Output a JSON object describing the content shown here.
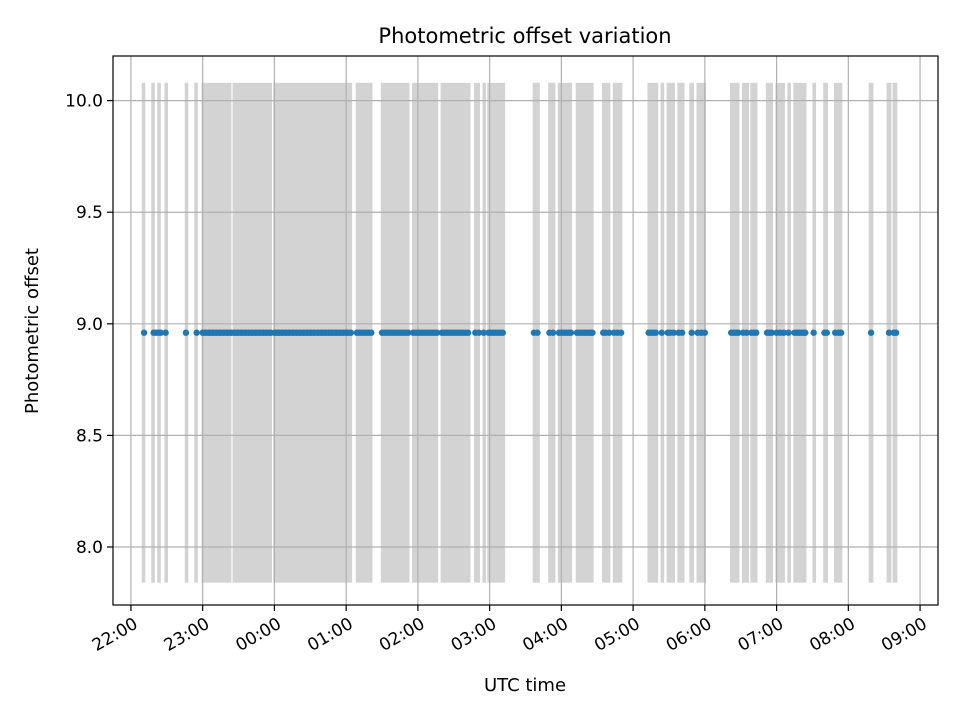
{
  "chart_data": {
    "type": "scatter",
    "title": "Photometric offset variation",
    "xlabel": "UTC time",
    "ylabel": "Photometric offset",
    "x_ticks": [
      "22:00",
      "23:00",
      "00:00",
      "01:00",
      "02:00",
      "03:00",
      "04:00",
      "05:00",
      "06:00",
      "07:00",
      "08:00",
      "09:00"
    ],
    "xlim": [
      "21:45",
      "09:15"
    ],
    "y_ticks": [
      "8.0",
      "8.5",
      "9.0",
      "9.5",
      "10.0"
    ],
    "ylim": [
      7.74,
      10.2
    ],
    "grid": true,
    "colors": {
      "points": "#1f77b4",
      "bands": "#d3d3d3",
      "grid": "#b0b0b0"
    },
    "band_y_range": [
      7.84,
      10.08
    ],
    "shaded_intervals": [
      [
        "22:09",
        "22:12"
      ],
      [
        "22:17",
        "22:20"
      ],
      [
        "22:22",
        "22:25"
      ],
      [
        "22:28",
        "22:31"
      ],
      [
        "22:45",
        "22:48"
      ],
      [
        "22:53",
        "22:56"
      ],
      [
        "22:59",
        "23:24"
      ],
      [
        "23:25",
        "23:58"
      ],
      [
        "23:59",
        "01:05"
      ],
      [
        "01:08",
        "01:22"
      ],
      [
        "01:29",
        "01:53"
      ],
      [
        "01:55",
        "02:17"
      ],
      [
        "02:19",
        "02:44"
      ],
      [
        "02:47",
        "02:52"
      ],
      [
        "02:54",
        "02:57"
      ],
      [
        "02:58",
        "03:13"
      ],
      [
        "03:36",
        "03:42"
      ],
      [
        "03:49",
        "03:55"
      ],
      [
        "03:57",
        "04:09"
      ],
      [
        "04:12",
        "04:27"
      ],
      [
        "04:34",
        "04:41"
      ],
      [
        "04:43",
        "04:51"
      ],
      [
        "05:12",
        "05:21"
      ],
      [
        "05:23",
        "05:26"
      ],
      [
        "05:28",
        "05:35"
      ],
      [
        "05:37",
        "05:43"
      ],
      [
        "05:47",
        "05:51"
      ],
      [
        "05:53",
        "06:01"
      ],
      [
        "06:21",
        "06:29"
      ],
      [
        "06:31",
        "06:37"
      ],
      [
        "06:38",
        "06:44"
      ],
      [
        "06:51",
        "06:57"
      ],
      [
        "06:59",
        "07:07"
      ],
      [
        "07:09",
        "07:12"
      ],
      [
        "07:14",
        "07:25"
      ],
      [
        "07:30",
        "07:33"
      ],
      [
        "07:39",
        "07:43"
      ],
      [
        "07:48",
        "07:55"
      ],
      [
        "08:17",
        "08:21"
      ],
      [
        "08:32",
        "08:36"
      ],
      [
        "08:37",
        "08:41"
      ]
    ],
    "series": [
      {
        "y": 8.96,
        "x": [
          "22:11",
          "22:19",
          "22:21",
          "22:23",
          "22:25",
          "22:29",
          "22:46",
          "22:55",
          "23:00",
          "23:02",
          "23:03",
          "23:05",
          "23:06",
          "23:08",
          "23:09",
          "23:11",
          "23:12",
          "23:14",
          "23:15",
          "23:17",
          "23:18",
          "23:20",
          "23:21",
          "23:23",
          "23:24",
          "23:26",
          "23:27",
          "23:29",
          "23:30",
          "23:32",
          "23:33",
          "23:35",
          "23:36",
          "23:38",
          "23:39",
          "23:41",
          "23:42",
          "23:44",
          "23:45",
          "23:47",
          "23:48",
          "23:50",
          "23:51",
          "23:53",
          "23:54",
          "23:56",
          "23:57",
          "00:00",
          "00:01",
          "00:03",
          "00:04",
          "00:06",
          "00:07",
          "00:09",
          "00:10",
          "00:12",
          "00:13",
          "00:15",
          "00:16",
          "00:18",
          "00:19",
          "00:21",
          "00:22",
          "00:24",
          "00:25",
          "00:27",
          "00:28",
          "00:30",
          "00:31",
          "00:33",
          "00:34",
          "00:36",
          "00:37",
          "00:39",
          "00:40",
          "00:42",
          "00:43",
          "00:45",
          "00:46",
          "00:48",
          "00:49",
          "00:51",
          "00:52",
          "00:54",
          "00:55",
          "00:57",
          "00:58",
          "01:00",
          "01:01",
          "01:03",
          "01:04",
          "01:09",
          "01:11",
          "01:13",
          "01:15",
          "01:17",
          "01:19",
          "01:21",
          "01:30",
          "01:32",
          "01:34",
          "01:36",
          "01:38",
          "01:40",
          "01:42",
          "01:44",
          "01:46",
          "01:48",
          "01:50",
          "01:52",
          "01:56",
          "01:58",
          "02:00",
          "02:02",
          "02:04",
          "02:06",
          "02:08",
          "02:10",
          "02:12",
          "02:14",
          "02:16",
          "02:20",
          "02:22",
          "02:24",
          "02:26",
          "02:28",
          "02:30",
          "02:32",
          "02:34",
          "02:36",
          "02:38",
          "02:40",
          "02:42",
          "02:48",
          "02:51",
          "02:55",
          "02:59",
          "03:01",
          "03:03",
          "03:05",
          "03:07",
          "03:09",
          "03:11",
          "03:37",
          "03:40",
          "03:50",
          "03:53",
          "03:58",
          "04:00",
          "04:02",
          "04:04",
          "04:06",
          "04:08",
          "04:13",
          "04:15",
          "04:17",
          "04:19",
          "04:21",
          "04:23",
          "04:25",
          "04:26",
          "04:35",
          "04:37",
          "04:40",
          "04:44",
          "04:47",
          "04:50",
          "05:13",
          "05:15",
          "05:17",
          "05:19",
          "05:24",
          "05:29",
          "05:31",
          "05:34",
          "05:38",
          "05:41",
          "05:49",
          "05:54",
          "05:57",
          "06:00",
          "06:22",
          "06:24",
          "06:26",
          "06:28",
          "06:32",
          "06:35",
          "06:39",
          "06:41",
          "06:43",
          "06:52",
          "06:54",
          "06:56",
          "07:00",
          "07:03",
          "07:06",
          "07:10",
          "07:15",
          "07:17",
          "07:19",
          "07:21",
          "07:23",
          "07:24",
          "07:31",
          "07:40",
          "07:42",
          "07:49",
          "07:52",
          "07:54",
          "08:19",
          "08:34",
          "08:38",
          "08:40"
        ]
      }
    ]
  }
}
